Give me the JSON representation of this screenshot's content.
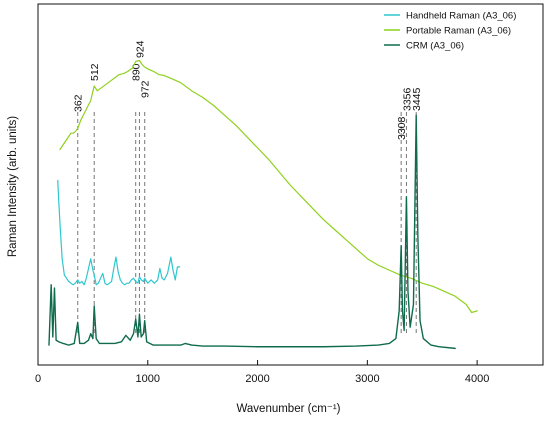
{
  "chart_data": {
    "type": "line",
    "xlabel": "Wavenumber (cm⁻¹)",
    "ylabel": "Raman Intensity (arb. units)",
    "xlim": [
      0,
      4600
    ],
    "ylim": [
      0,
      1
    ],
    "x_ticks": [
      0,
      1000,
      2000,
      3000,
      4000
    ],
    "y_ticks_visible": false,
    "legend_position": "top-right",
    "grid": false,
    "peak_markers": [
      {
        "value": 362,
        "label": "362"
      },
      {
        "value": 512,
        "label": "512"
      },
      {
        "value": 890,
        "label": "890"
      },
      {
        "value": 924,
        "label": "924"
      },
      {
        "value": 972,
        "label": "972"
      },
      {
        "value": 3308,
        "label": "3308"
      },
      {
        "value": 3356,
        "label": "3356"
      },
      {
        "value": 3445,
        "label": "3445"
      }
    ],
    "series": [
      {
        "name": "Handheld Raman (A3_06)",
        "color": "#2ec7cf",
        "points": [
          [
            180,
            0.52
          ],
          [
            190,
            0.45
          ],
          [
            205,
            0.36
          ],
          [
            220,
            0.28
          ],
          [
            240,
            0.23
          ],
          [
            260,
            0.22
          ],
          [
            280,
            0.21
          ],
          [
            300,
            0.205
          ],
          [
            320,
            0.2
          ],
          [
            340,
            0.205
          ],
          [
            362,
            0.215
          ],
          [
            380,
            0.205
          ],
          [
            400,
            0.21
          ],
          [
            420,
            0.2
          ],
          [
            440,
            0.22
          ],
          [
            460,
            0.25
          ],
          [
            480,
            0.28
          ],
          [
            500,
            0.245
          ],
          [
            512,
            0.23
          ],
          [
            530,
            0.2
          ],
          [
            550,
            0.205
          ],
          [
            570,
            0.22
          ],
          [
            590,
            0.235
          ],
          [
            610,
            0.205
          ],
          [
            630,
            0.2
          ],
          [
            650,
            0.205
          ],
          [
            670,
            0.21
          ],
          [
            690,
            0.25
          ],
          [
            710,
            0.285
          ],
          [
            730,
            0.24
          ],
          [
            750,
            0.215
          ],
          [
            770,
            0.205
          ],
          [
            790,
            0.2
          ],
          [
            810,
            0.205
          ],
          [
            830,
            0.205
          ],
          [
            850,
            0.215
          ],
          [
            870,
            0.22
          ],
          [
            890,
            0.21
          ],
          [
            910,
            0.205
          ],
          [
            924,
            0.225
          ],
          [
            940,
            0.215
          ],
          [
            960,
            0.21
          ],
          [
            972,
            0.22
          ],
          [
            1000,
            0.205
          ],
          [
            1030,
            0.215
          ],
          [
            1060,
            0.205
          ],
          [
            1090,
            0.215
          ],
          [
            1110,
            0.25
          ],
          [
            1130,
            0.22
          ],
          [
            1150,
            0.215
          ],
          [
            1180,
            0.235
          ],
          [
            1210,
            0.285
          ],
          [
            1230,
            0.245
          ],
          [
            1250,
            0.215
          ],
          [
            1270,
            0.255
          ],
          [
            1290,
            0.255
          ]
        ]
      },
      {
        "name": "Portable Raman (A3_06)",
        "color": "#8fd11d",
        "points": [
          [
            200,
            0.615
          ],
          [
            220,
            0.625
          ],
          [
            240,
            0.635
          ],
          [
            260,
            0.645
          ],
          [
            280,
            0.655
          ],
          [
            300,
            0.665
          ],
          [
            320,
            0.665
          ],
          [
            340,
            0.67
          ],
          [
            362,
            0.68
          ],
          [
            390,
            0.705
          ],
          [
            420,
            0.725
          ],
          [
            450,
            0.745
          ],
          [
            480,
            0.765
          ],
          [
            512,
            0.81
          ],
          [
            540,
            0.795
          ],
          [
            580,
            0.805
          ],
          [
            620,
            0.815
          ],
          [
            660,
            0.825
          ],
          [
            700,
            0.835
          ],
          [
            740,
            0.845
          ],
          [
            780,
            0.848
          ],
          [
            820,
            0.855
          ],
          [
            860,
            0.865
          ],
          [
            890,
            0.885
          ],
          [
            924,
            0.888
          ],
          [
            950,
            0.875
          ],
          [
            972,
            0.868
          ],
          [
            1000,
            0.862
          ],
          [
            1050,
            0.855
          ],
          [
            1100,
            0.845
          ],
          [
            1150,
            0.842
          ],
          [
            1200,
            0.835
          ],
          [
            1300,
            0.82
          ],
          [
            1400,
            0.795
          ],
          [
            1500,
            0.775
          ],
          [
            1600,
            0.75
          ],
          [
            1700,
            0.72
          ],
          [
            1800,
            0.69
          ],
          [
            1900,
            0.655
          ],
          [
            2000,
            0.62
          ],
          [
            2100,
            0.585
          ],
          [
            2200,
            0.545
          ],
          [
            2300,
            0.505
          ],
          [
            2400,
            0.47
          ],
          [
            2500,
            0.435
          ],
          [
            2600,
            0.4
          ],
          [
            2700,
            0.37
          ],
          [
            2800,
            0.34
          ],
          [
            2900,
            0.31
          ],
          [
            3000,
            0.28
          ],
          [
            3100,
            0.26
          ],
          [
            3200,
            0.245
          ],
          [
            3300,
            0.23
          ],
          [
            3400,
            0.22
          ],
          [
            3500,
            0.205
          ],
          [
            3600,
            0.195
          ],
          [
            3700,
            0.18
          ],
          [
            3800,
            0.165
          ],
          [
            3900,
            0.14
          ],
          [
            3950,
            0.115
          ],
          [
            4000,
            0.12
          ]
        ]
      },
      {
        "name": "CRM (A3_06)",
        "color": "#0f6b4d",
        "points": [
          [
            100,
            0.015
          ],
          [
            120,
            0.2
          ],
          [
            135,
            0.04
          ],
          [
            150,
            0.19
          ],
          [
            165,
            0.03
          ],
          [
            190,
            0.025
          ],
          [
            230,
            0.02
          ],
          [
            280,
            0.015
          ],
          [
            330,
            0.02
          ],
          [
            362,
            0.085
          ],
          [
            380,
            0.02
          ],
          [
            420,
            0.02
          ],
          [
            460,
            0.03
          ],
          [
            480,
            0.05
          ],
          [
            500,
            0.035
          ],
          [
            512,
            0.135
          ],
          [
            530,
            0.035
          ],
          [
            560,
            0.02
          ],
          [
            620,
            0.02
          ],
          [
            700,
            0.02
          ],
          [
            760,
            0.025
          ],
          [
            800,
            0.045
          ],
          [
            840,
            0.03
          ],
          [
            870,
            0.05
          ],
          [
            890,
            0.095
          ],
          [
            910,
            0.04
          ],
          [
            924,
            0.11
          ],
          [
            940,
            0.04
          ],
          [
            960,
            0.05
          ],
          [
            972,
            0.09
          ],
          [
            990,
            0.025
          ],
          [
            1050,
            0.015
          ],
          [
            1150,
            0.015
          ],
          [
            1250,
            0.015
          ],
          [
            1300,
            0.015
          ],
          [
            1340,
            0.02
          ],
          [
            1400,
            0.015
          ],
          [
            1500,
            0.012
          ],
          [
            1700,
            0.012
          ],
          [
            2000,
            0.01
          ],
          [
            2300,
            0.01
          ],
          [
            2600,
            0.01
          ],
          [
            2900,
            0.012
          ],
          [
            3100,
            0.015
          ],
          [
            3200,
            0.02
          ],
          [
            3260,
            0.035
          ],
          [
            3290,
            0.12
          ],
          [
            3308,
            0.32
          ],
          [
            3320,
            0.12
          ],
          [
            3335,
            0.06
          ],
          [
            3356,
            0.47
          ],
          [
            3370,
            0.18
          ],
          [
            3390,
            0.07
          ],
          [
            3420,
            0.14
          ],
          [
            3445,
            0.72
          ],
          [
            3460,
            0.35
          ],
          [
            3480,
            0.09
          ],
          [
            3510,
            0.035
          ],
          [
            3580,
            0.015
          ],
          [
            3650,
            0.01
          ],
          [
            3800,
            0.005
          ]
        ]
      }
    ]
  }
}
